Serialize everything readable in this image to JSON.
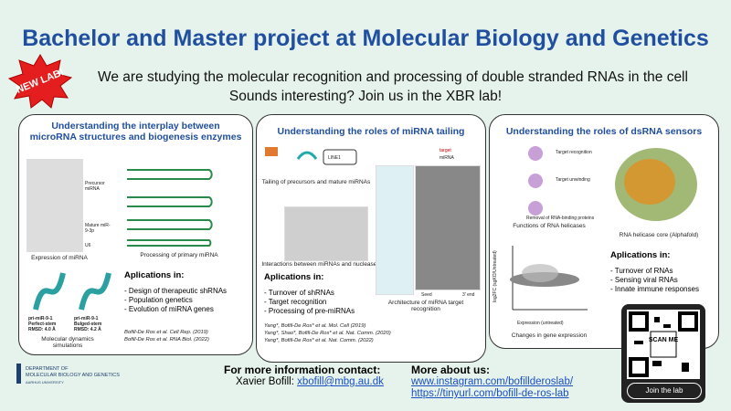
{
  "header": {
    "title": "Bachelor and Master project at Molecular Biology and Genetics",
    "badge": "NEW LAB!",
    "lines": [
      "We are studying the molecular recognition and processing of double stranded RNAs in the cell",
      "Sounds interesting? Join us in the XBR lab!"
    ]
  },
  "panels": [
    {
      "title": "Understanding the interplay between microRNA structures and biogenesis enzymes",
      "labels": [
        "Precursor miRNA",
        "Mature miR-9-3p",
        "U6",
        "pri-miR-9-1 Perfect-stem RMSD: 4.0 Å",
        "pri-miR-9-1 Bulged-stem RMSD: 4.2 Å"
      ],
      "captions": [
        "Expression of miRNA",
        "Processing of primary miRNA",
        "Molecular dynamics simulations"
      ],
      "applications_title": "Aplications in:",
      "applications": [
        "- Design of therapeutic shRNAs",
        "- Population genetics",
        "- Evolution of miRNA genes"
      ],
      "references": [
        "Bofill-De Ros et al. Cell Rep. (2019)",
        "Bofill-De Ros et al. RNA Biol. (2022)"
      ]
    },
    {
      "title": "Understanding the roles of miRNA tailing",
      "labels": [
        "LINE1",
        "target",
        "miRNA",
        "Seed",
        "3' end"
      ],
      "captions": [
        "Tailing of precursors and mature miRNAs",
        "Interactions between miRNAs  and nucleases",
        "Architecture of miRNA target recognition"
      ],
      "applications_title": "Aplications in:",
      "applications": [
        "- Turnover of shRNAs",
        "- Target recognition",
        "- Processing of pre-miRNAs"
      ],
      "references": [
        "Yang*, Bofill-De Ros* et al. Mol. Cell (2019)",
        "Yang*, Shao*, Bofill-De Ros* et al. Nat. Comm. (2020)",
        "Yang*, Bofill-De Ros* et al. Nat. Comm. (2022)"
      ]
    },
    {
      "title": "Understanding the roles of dsRNA sensors",
      "labels": [
        "Target recognition",
        "Target unwinding",
        "Removal of RNA-binding proteins",
        "Expression (untreated)",
        "log2FC (sgKO/Untreated)"
      ],
      "captions": [
        "Functions of RNA  helicases",
        "RNA helicase core (Alphafold)",
        "Changes in gene expression"
      ],
      "applications_title": "Aplications in:",
      "applications": [
        "- Turnover of RNAs",
        "- Sensing viral RNAs",
        "- Innate immune responses"
      ]
    }
  ],
  "qr": {
    "scan": "SCAN ME",
    "button": "Join the lab"
  },
  "footer": {
    "logo": [
      "DEPARTMENT OF",
      "MOLECULAR BIOLOGY AND GENETICS",
      "AARHUS UNIVERSITY"
    ],
    "contact_title": "For more information contact:",
    "contact_name": "Xavier Bofill:",
    "contact_email": "xbofill@mbg.au.dk",
    "more_title": "More about us:",
    "links": [
      "www.instagram.com/bofillderoslab/",
      "https://tinyurl.com/bofill-de-ros-lab"
    ]
  }
}
